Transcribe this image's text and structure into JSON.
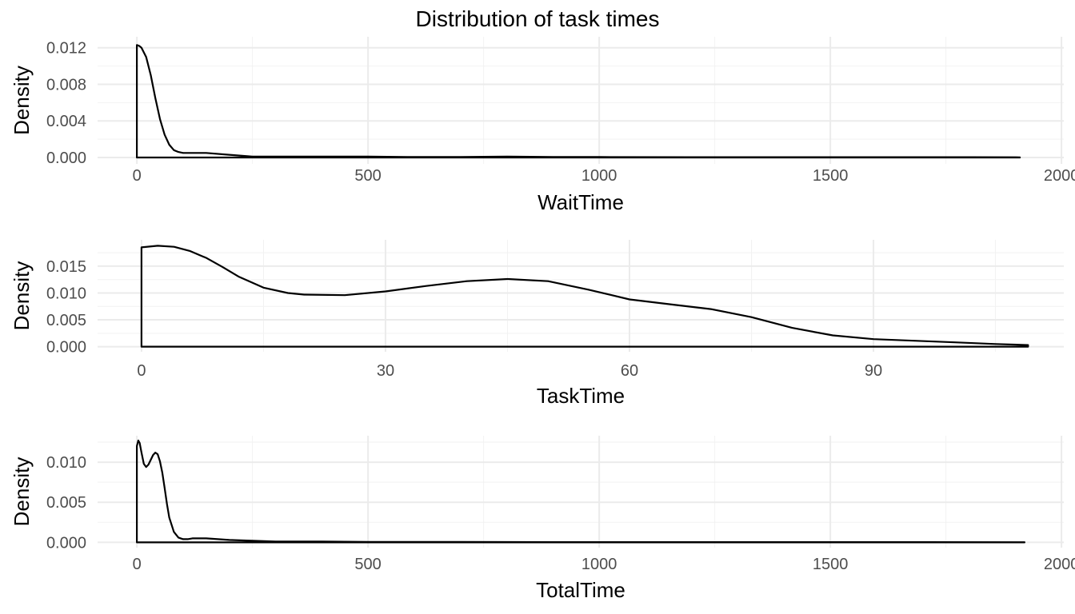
{
  "title": "Distribution of task times",
  "colors": {
    "line": "#000000",
    "grid_major": "#ebebeb",
    "grid_minor": "#f2f2f2",
    "tick_text": "#4d4d4d",
    "background": "#ffffff"
  },
  "chart_data": [
    {
      "type": "area",
      "xlabel": "WaitTime",
      "ylabel": "Density",
      "xlim": [
        -85,
        2005
      ],
      "ylim": [
        -0.0007,
        0.0132
      ],
      "xticks": [
        0,
        500,
        1000,
        1500,
        2000
      ],
      "xtick_labels": [
        "0",
        "500",
        "1000",
        "1500",
        "2000"
      ],
      "yticks": [
        0,
        0.004,
        0.008,
        0.012
      ],
      "ytick_labels": [
        "0.000",
        "0.004",
        "0.008",
        "0.012"
      ],
      "grid": true,
      "series": [
        {
          "x": [
            0,
            5,
            10,
            20,
            30,
            40,
            50,
            60,
            70,
            80,
            90,
            100,
            120,
            150,
            200,
            250,
            300,
            350,
            400,
            500,
            600,
            700,
            800,
            900,
            1000,
            1200,
            1400,
            1600,
            1800,
            1910,
            1910
          ],
          "y": [
            0.0123,
            0.0122,
            0.012,
            0.011,
            0.009,
            0.0065,
            0.0042,
            0.0025,
            0.0014,
            0.0008,
            0.0006,
            0.0005,
            0.0005,
            0.0005,
            0.0003,
            0.0001,
            0.0001,
            0.0001,
            0.0001,
            0.0001,
            5e-05,
            5e-05,
            0.0001,
            5e-05,
            5e-05,
            3e-05,
            3e-05,
            3e-05,
            3e-05,
            2e-05,
            0
          ]
        }
      ]
    },
    {
      "type": "area",
      "xlabel": "TaskTime",
      "ylabel": "Density",
      "xlim": [
        -5.4,
        113.4
      ],
      "ylim": [
        -0.00095,
        0.0199
      ],
      "xticks": [
        0,
        30,
        60,
        90
      ],
      "xtick_labels": [
        "0",
        "30",
        "60",
        "90"
      ],
      "yticks": [
        0,
        0.005,
        0.01,
        0.015
      ],
      "ytick_labels": [
        "0.000",
        "0.005",
        "0.010",
        "0.015"
      ],
      "grid": true,
      "series": [
        {
          "x": [
            0,
            2,
            4,
            6,
            8,
            10,
            12,
            15,
            18,
            20,
            25,
            30,
            35,
            40,
            45,
            50,
            55,
            60,
            65,
            70,
            75,
            80,
            85,
            90,
            95,
            100,
            105,
            109,
            109
          ],
          "y": [
            0.0185,
            0.0188,
            0.0186,
            0.0178,
            0.0165,
            0.0148,
            0.013,
            0.011,
            0.01,
            0.0097,
            0.0096,
            0.0103,
            0.0113,
            0.0122,
            0.0126,
            0.0122,
            0.0106,
            0.0088,
            0.0079,
            0.007,
            0.0055,
            0.0035,
            0.0021,
            0.0014,
            0.0011,
            0.0008,
            0.0005,
            0.0003,
            0
          ]
        }
      ]
    },
    {
      "type": "area",
      "xlabel": "TotalTime",
      "ylabel": "Density",
      "xlim": [
        -85,
        2005
      ],
      "ylim": [
        -0.00066,
        0.0133
      ],
      "xticks": [
        0,
        500,
        1000,
        1500,
        2000
      ],
      "xtick_labels": [
        "0",
        "500",
        "1000",
        "1500",
        "2000"
      ],
      "yticks": [
        0,
        0.005,
        0.01
      ],
      "ytick_labels": [
        "0.000",
        "0.005",
        "0.010"
      ],
      "grid": true,
      "series": [
        {
          "x": [
            0,
            3,
            6,
            10,
            15,
            20,
            25,
            30,
            35,
            40,
            45,
            50,
            55,
            60,
            65,
            70,
            80,
            90,
            100,
            110,
            120,
            150,
            200,
            250,
            300,
            400,
            500,
            700,
            900,
            1100,
            1300,
            1500,
            1700,
            1920,
            1920
          ],
          "y": [
            0.012,
            0.0127,
            0.0124,
            0.0112,
            0.0098,
            0.0094,
            0.0097,
            0.0103,
            0.0109,
            0.0112,
            0.011,
            0.0101,
            0.0087,
            0.0068,
            0.0048,
            0.0031,
            0.0013,
            0.0006,
            0.0004,
            0.0004,
            0.0005,
            0.0005,
            0.0003,
            0.0002,
            0.0001,
            0.0001,
            5e-05,
            5e-05,
            3e-05,
            3e-05,
            3e-05,
            3e-05,
            3e-05,
            2e-05,
            0
          ]
        }
      ]
    }
  ]
}
